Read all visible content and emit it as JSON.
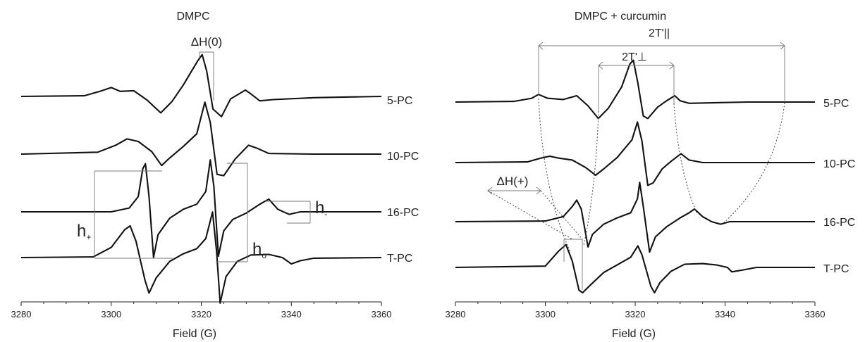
{
  "chart_data": [
    {
      "type": "line",
      "title": "DMPC",
      "xlabel": "Field (G)",
      "ylabel": "",
      "xlim": [
        3280,
        3360
      ],
      "xticks": [
        "3280",
        "3300",
        "3320",
        "3340",
        "3360"
      ],
      "series": [
        {
          "name": "5-PC",
          "points": [
            [
              3280,
              0
            ],
            [
              3294,
              0.05
            ],
            [
              3297.5,
              0.4
            ],
            [
              3300,
              0.7
            ],
            [
              3302,
              0.4
            ],
            [
              3305,
              0.45
            ],
            [
              3308,
              -0.3
            ],
            [
              3311,
              -1.3
            ],
            [
              3313.5,
              -0.4
            ],
            [
              3316,
              0.9
            ],
            [
              3319.2,
              2.8
            ],
            [
              3320.2,
              3.3
            ],
            [
              3321.2,
              2.0
            ],
            [
              3322.6,
              -1.0
            ],
            [
              3324.5,
              -1.6
            ],
            [
              3326.5,
              -0.2
            ],
            [
              3329.8,
              0.5
            ],
            [
              3331,
              0.2
            ],
            [
              3333,
              -0.35
            ],
            [
              3336,
              -0.25
            ],
            [
              3345,
              -0.1
            ],
            [
              3360,
              0
            ]
          ]
        },
        {
          "name": "10-PC",
          "points": [
            [
              3280,
              0
            ],
            [
              3297,
              0.15
            ],
            [
              3301,
              0.7
            ],
            [
              3303.5,
              1.2
            ],
            [
              3306,
              1.0
            ],
            [
              3309,
              0.2
            ],
            [
              3311.2,
              -0.9
            ],
            [
              3313,
              -0.3
            ],
            [
              3316,
              0.6
            ],
            [
              3319,
              1.6
            ],
            [
              3320.8,
              4.1
            ],
            [
              3322,
              2.5
            ],
            [
              3323.5,
              -1.6
            ],
            [
              3325,
              -1.7
            ],
            [
              3327.5,
              -0.4
            ],
            [
              3330.5,
              0.7
            ],
            [
              3332.5,
              0.45
            ],
            [
              3335,
              0.05
            ],
            [
              3345,
              0
            ],
            [
              3360,
              0
            ]
          ]
        },
        {
          "name": "16-PC",
          "points": [
            [
              3280,
              0
            ],
            [
              3300,
              0
            ],
            [
              3304,
              0.3
            ],
            [
              3306,
              1.2
            ],
            [
              3307,
              3.4
            ],
            [
              3307.6,
              3.8
            ],
            [
              3308.4,
              1.2
            ],
            [
              3309.4,
              -3.6
            ],
            [
              3310.4,
              -1.8
            ],
            [
              3313,
              -0.5
            ],
            [
              3316,
              0.2
            ],
            [
              3319,
              0.6
            ],
            [
              3321,
              1.6
            ],
            [
              3322,
              4.1
            ],
            [
              3322.8,
              2.0
            ],
            [
              3323.8,
              -3.5
            ],
            [
              3325,
              -1.5
            ],
            [
              3327,
              -0.6
            ],
            [
              3330,
              -0.1
            ],
            [
              3333,
              0.6
            ],
            [
              3335,
              1.0
            ],
            [
              3337,
              0.2
            ],
            [
              3339.5,
              -0.2
            ],
            [
              3342,
              0
            ],
            [
              3360,
              0
            ]
          ]
        },
        {
          "name": "T-PC",
          "points": [
            [
              3280,
              0
            ],
            [
              3296,
              0.05
            ],
            [
              3300,
              0.8
            ],
            [
              3303,
              2.2
            ],
            [
              3304.2,
              2.5
            ],
            [
              3305.5,
              1.3
            ],
            [
              3307.5,
              -1.8
            ],
            [
              3308.4,
              -2.8
            ],
            [
              3310,
              -1.6
            ],
            [
              3313,
              -0.3
            ],
            [
              3316,
              0.3
            ],
            [
              3319,
              0.7
            ],
            [
              3321,
              1.5
            ],
            [
              3322.5,
              3.6
            ],
            [
              3323.4,
              0.5
            ],
            [
              3324.2,
              -3.6
            ],
            [
              3325.5,
              -1.5
            ],
            [
              3328,
              -0.3
            ],
            [
              3331,
              0.2
            ],
            [
              3335,
              0.25
            ],
            [
              3338,
              0
            ],
            [
              3340,
              -0.5
            ],
            [
              3342,
              -0.25
            ],
            [
              3345,
              -0.05
            ],
            [
              3360,
              0
            ]
          ]
        }
      ],
      "trace_labels": [
        "5-PC",
        "10-PC",
        "16-PC",
        "T-PC"
      ],
      "annotations": [
        "ΔH(0)",
        "h+",
        "h-",
        "ho"
      ]
    },
    {
      "type": "line",
      "title": "DMPC + curcumin",
      "xlabel": "Field (G)",
      "ylabel": "",
      "xlim": [
        3280,
        3360
      ],
      "xticks": [
        "3280",
        "3300",
        "3320",
        "3340",
        "3360"
      ],
      "series": [
        {
          "name": "5-PC",
          "points": [
            [
              3280,
              0
            ],
            [
              3293,
              0.05
            ],
            [
              3297,
              0.3
            ],
            [
              3298.5,
              0.6
            ],
            [
              3300.5,
              0.3
            ],
            [
              3304,
              0.2
            ],
            [
              3307,
              0.5
            ],
            [
              3309.5,
              -0.3
            ],
            [
              3311.8,
              -1.3
            ],
            [
              3314,
              -0.5
            ],
            [
              3317,
              1.2
            ],
            [
              3318.8,
              3.0
            ],
            [
              3319.6,
              3.3
            ],
            [
              3320.6,
              1.5
            ],
            [
              3321.8,
              -1.1
            ],
            [
              3322.8,
              -1.3
            ],
            [
              3325,
              -0.4
            ],
            [
              3327,
              0.1
            ],
            [
              3328.8,
              0.5
            ],
            [
              3330,
              0.1
            ],
            [
              3332,
              -0.1
            ],
            [
              3345,
              0
            ],
            [
              3360,
              0
            ]
          ]
        },
        {
          "name": "10-PC",
          "points": [
            [
              3280,
              0
            ],
            [
              3296,
              0.05
            ],
            [
              3299,
              0.35
            ],
            [
              3301,
              0.5
            ],
            [
              3303,
              0.35
            ],
            [
              3306,
              0.2
            ],
            [
              3309,
              -0.4
            ],
            [
              3311.2,
              -1.0
            ],
            [
              3313,
              -0.5
            ],
            [
              3316,
              0.4
            ],
            [
              3319.3,
              1.8
            ],
            [
              3320.5,
              3.2
            ],
            [
              3321.5,
              1.7
            ],
            [
              3322.8,
              -1.8
            ],
            [
              3324,
              -1.6
            ],
            [
              3326,
              -0.5
            ],
            [
              3328,
              0.1
            ],
            [
              3330.2,
              0.7
            ],
            [
              3332,
              0.2
            ],
            [
              3335,
              0
            ],
            [
              3360,
              0
            ]
          ]
        },
        {
          "name": "16-PC",
          "points": [
            [
              3280,
              0
            ],
            [
              3300,
              0.05
            ],
            [
              3304,
              0.4
            ],
            [
              3306,
              1.2
            ],
            [
              3307,
              1.7
            ],
            [
              3308,
              1.0
            ],
            [
              3309.5,
              -2.0
            ],
            [
              3310.5,
              -1.0
            ],
            [
              3313,
              -0.2
            ],
            [
              3316,
              0.3
            ],
            [
              3319,
              0.7
            ],
            [
              3320.5,
              1.8
            ],
            [
              3321,
              3.1
            ],
            [
              3321.8,
              1.2
            ],
            [
              3323.2,
              -2.4
            ],
            [
              3324.5,
              -1.2
            ],
            [
              3327,
              -0.4
            ],
            [
              3330,
              0.3
            ],
            [
              3332,
              0.7
            ],
            [
              3333.2,
              1.0
            ],
            [
              3335,
              0.4
            ],
            [
              3337,
              0
            ],
            [
              3339,
              -0.2
            ],
            [
              3341,
              0
            ],
            [
              3360,
              0
            ]
          ]
        },
        {
          "name": "T-PC",
          "points": [
            [
              3280,
              0
            ],
            [
              3300,
              0.1
            ],
            [
              3303,
              1.3
            ],
            [
              3304.6,
              1.8
            ],
            [
              3306,
              0.5
            ],
            [
              3307.5,
              -1.8
            ],
            [
              3308.3,
              -2.0
            ],
            [
              3310,
              -1.4
            ],
            [
              3313,
              -0.4
            ],
            [
              3316,
              0.2
            ],
            [
              3319,
              0.8
            ],
            [
              3320.6,
              1.7
            ],
            [
              3321.5,
              1.0
            ],
            [
              3323.5,
              -1.5
            ],
            [
              3324.3,
              -2.0
            ],
            [
              3325.5,
              -1.2
            ],
            [
              3328,
              -0.3
            ],
            [
              3331,
              0.25
            ],
            [
              3335,
              0.3
            ],
            [
              3338,
              0.2
            ],
            [
              3340.5,
              0
            ],
            [
              3341.5,
              -0.35
            ],
            [
              3344,
              -0.2
            ],
            [
              3347,
              0
            ],
            [
              3360,
              0
            ]
          ]
        }
      ],
      "trace_labels": [
        "5-PC",
        "10-PC",
        "16-PC",
        "T-PC"
      ],
      "annotations": [
        "2T'||",
        "2T'⊥",
        "ΔH(+)"
      ]
    }
  ]
}
